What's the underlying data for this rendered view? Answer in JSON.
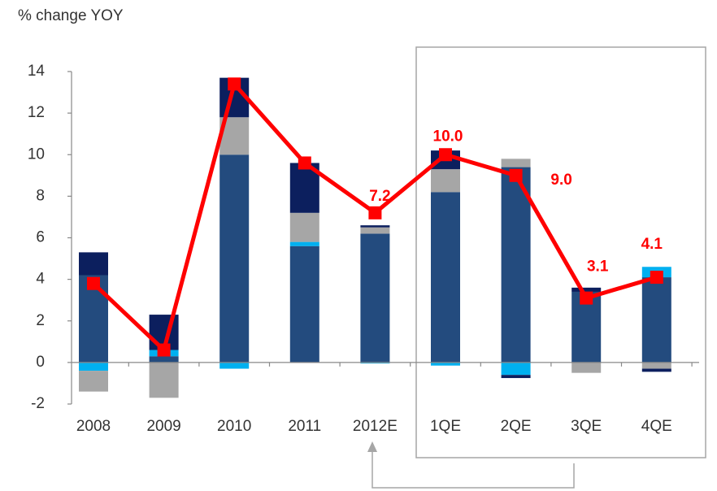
{
  "chart_data": {
    "type": "bar",
    "y_axis_label": "% change YOY",
    "categories": [
      "2008",
      "2009",
      "2010",
      "2011",
      "2012E",
      "1QE",
      "2QE",
      "3QE",
      "4QE"
    ],
    "series": [
      {
        "color": "#234b7e",
        "values": [
          4.2,
          0.3,
          10.0,
          5.6,
          6.2,
          8.2,
          9.4,
          3.4,
          4.1
        ]
      },
      {
        "color": "#00b0f0",
        "values": [
          -0.4,
          0.3,
          -0.3,
          0.2,
          -0.05,
          -0.15,
          -0.6,
          0,
          0.5
        ]
      },
      {
        "color": "#a6a6a6",
        "values": [
          -1.0,
          -1.7,
          1.8,
          1.4,
          0.3,
          1.1,
          0.4,
          -0.5,
          -0.3
        ]
      },
      {
        "color": "#0c1f5e",
        "values": [
          1.1,
          1.7,
          1.9,
          2.4,
          0.1,
          0.9,
          -0.15,
          0.2,
          -0.15
        ]
      }
    ],
    "line": {
      "type": "line",
      "color": "#ff0000",
      "values": [
        3.8,
        0.6,
        13.4,
        9.6,
        7.2,
        10.0,
        9.0,
        3.1,
        4.1
      ],
      "value_labels": [
        null,
        null,
        null,
        null,
        "7.2",
        "10.0",
        "9.0",
        "3.1",
        "4.1"
      ]
    },
    "ylim": [
      -2,
      14
    ],
    "yticks": [
      -2,
      0,
      2,
      4,
      6,
      8,
      10,
      12,
      14
    ],
    "grid": false
  }
}
